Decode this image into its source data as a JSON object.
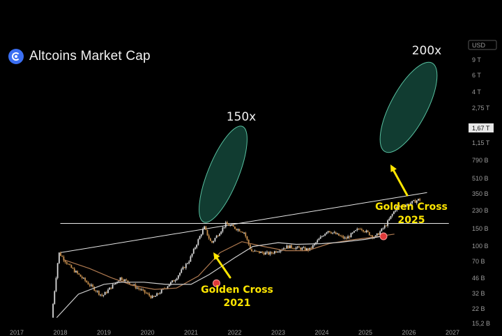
{
  "title": "Altcoins Market Cap",
  "icon": "coin-logo-icon",
  "currency": "USD",
  "colors": {
    "background": "#000000",
    "up": "#d8d8d8",
    "down": "#c8904e",
    "ma_fast": "#b07a50",
    "ma_slow": "#cfcfcf",
    "ellipse_fill": "#1f6e5a",
    "ellipse_stroke": "#58c0a0",
    "annotation": "#ffe600",
    "marker": "#e03a3a"
  },
  "chart_data": {
    "type": "line",
    "title": "Altcoins Market Cap",
    "x_ticks": [
      "2017",
      "2018",
      "2019",
      "2020",
      "2021",
      "2022",
      "2023",
      "2024",
      "2025",
      "2026",
      "2027"
    ],
    "y_ticks": [
      "USD",
      "9 T",
      "6 T",
      "4 T",
      "2,75 T",
      "1,67 T",
      "1,15 T",
      "790 B",
      "510 B",
      "350 B",
      "230 B",
      "150 B",
      "100 B",
      "70 B",
      "46 B",
      "32 B",
      "22 B",
      "15,2 B"
    ],
    "y_scale": "log",
    "highlighted_level": "1,67 T",
    "series": [
      {
        "name": "",
        "style": "candles",
        "x": [
          "2017-11",
          "2018-01",
          "2018-04",
          "2018-09",
          "2019-01",
          "2019-06",
          "2019-12",
          "2020-03",
          "2020-09",
          "2021-01",
          "2021-05",
          "2021-07",
          "2021-11",
          "2022-04",
          "2022-06",
          "2022-11",
          "2023-04",
          "2023-10",
          "2024-03",
          "2024-08",
          "2024-12",
          "2025-04",
          "2025-07",
          "2025-10",
          "2026-01",
          "2026-04"
        ],
        "values": [
          20,
          420,
          220,
          100,
          55,
          130,
          70,
          50,
          120,
          300,
          1400,
          650,
          1620,
          1100,
          450,
          400,
          560,
          480,
          1200,
          800,
          1350,
          850,
          1500,
          3500,
          4000,
          5000
        ]
      },
      {
        "name": "",
        "style": "moving-average-fast",
        "x": [
          "2018-02",
          "2018-09",
          "2019-03",
          "2019-09",
          "2020-03",
          "2020-09",
          "2021-03",
          "2021-09",
          "2022-03",
          "2022-09",
          "2023-03",
          "2023-09",
          "2024-03",
          "2024-09",
          "2025-03",
          "2025-09"
        ],
        "values": [
          300,
          200,
          130,
          90,
          75,
          80,
          140,
          420,
          700,
          560,
          460,
          460,
          640,
          760,
          860,
          1000
        ]
      },
      {
        "name": "",
        "style": "moving-average-slow",
        "x": [
          "2017-12",
          "2018-06",
          "2019-01",
          "2019-06",
          "2019-12",
          "2020-06",
          "2021-01",
          "2021-06",
          "2022-01",
          "2022-06",
          "2023-01",
          "2023-06",
          "2024-01",
          "2024-06",
          "2025-01",
          "2025-06"
        ],
        "values": [
          20,
          60,
          95,
          105,
          105,
          95,
          95,
          150,
          330,
          560,
          670,
          620,
          640,
          680,
          780,
          920
        ]
      }
    ],
    "annotations": [
      {
        "text": "150x"
      },
      {
        "text": "200x"
      },
      {
        "text": "Golden Cross",
        "subtext": "2021",
        "x": "2021-08",
        "y": 100
      },
      {
        "text": "Golden Cross",
        "subtext": "2025",
        "x": "2025-06",
        "y": 900
      }
    ],
    "trendlines": [
      {
        "from": {
          "x": "2018-01",
          "y": 420
        },
        "to": {
          "x": "2026-06",
          "y": 7000
        }
      },
      {
        "from": {
          "x": "2018-01",
          "y": 1650
        },
        "to": {
          "x": "2026-12",
          "y": 1650
        }
      }
    ]
  }
}
